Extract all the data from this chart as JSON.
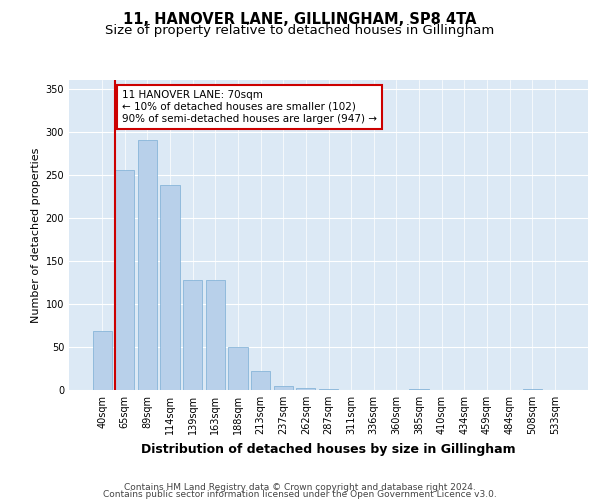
{
  "title": "11, HANOVER LANE, GILLINGHAM, SP8 4TA",
  "subtitle": "Size of property relative to detached houses in Gillingham",
  "xlabel": "Distribution of detached houses by size in Gillingham",
  "ylabel": "Number of detached properties",
  "categories": [
    "40sqm",
    "65sqm",
    "89sqm",
    "114sqm",
    "139sqm",
    "163sqm",
    "188sqm",
    "213sqm",
    "237sqm",
    "262sqm",
    "287sqm",
    "311sqm",
    "336sqm",
    "360sqm",
    "385sqm",
    "410sqm",
    "434sqm",
    "459sqm",
    "484sqm",
    "508sqm",
    "533sqm"
  ],
  "values": [
    68,
    255,
    290,
    238,
    128,
    128,
    50,
    22,
    5,
    2,
    1,
    0,
    0,
    0,
    1,
    0,
    0,
    0,
    0,
    1,
    0
  ],
  "bar_color": "#b8d0ea",
  "bar_edge_color": "#7aadd4",
  "background_color": "#dce9f5",
  "grid_color": "#ffffff",
  "vline_color": "#cc0000",
  "vline_x_index": 1,
  "annotation_text": "11 HANOVER LANE: 70sqm\n← 10% of detached houses are smaller (102)\n90% of semi-detached houses are larger (947) →",
  "annotation_box_color": "#ffffff",
  "annotation_box_edge": "#cc0000",
  "ylim": [
    0,
    360
  ],
  "yticks": [
    0,
    50,
    100,
    150,
    200,
    250,
    300,
    350
  ],
  "footer_line1": "Contains HM Land Registry data © Crown copyright and database right 2024.",
  "footer_line2": "Contains public sector information licensed under the Open Government Licence v3.0.",
  "title_fontsize": 10.5,
  "subtitle_fontsize": 9.5,
  "xlabel_fontsize": 9,
  "ylabel_fontsize": 8,
  "tick_fontsize": 7,
  "annotation_fontsize": 7.5,
  "footer_fontsize": 6.5
}
